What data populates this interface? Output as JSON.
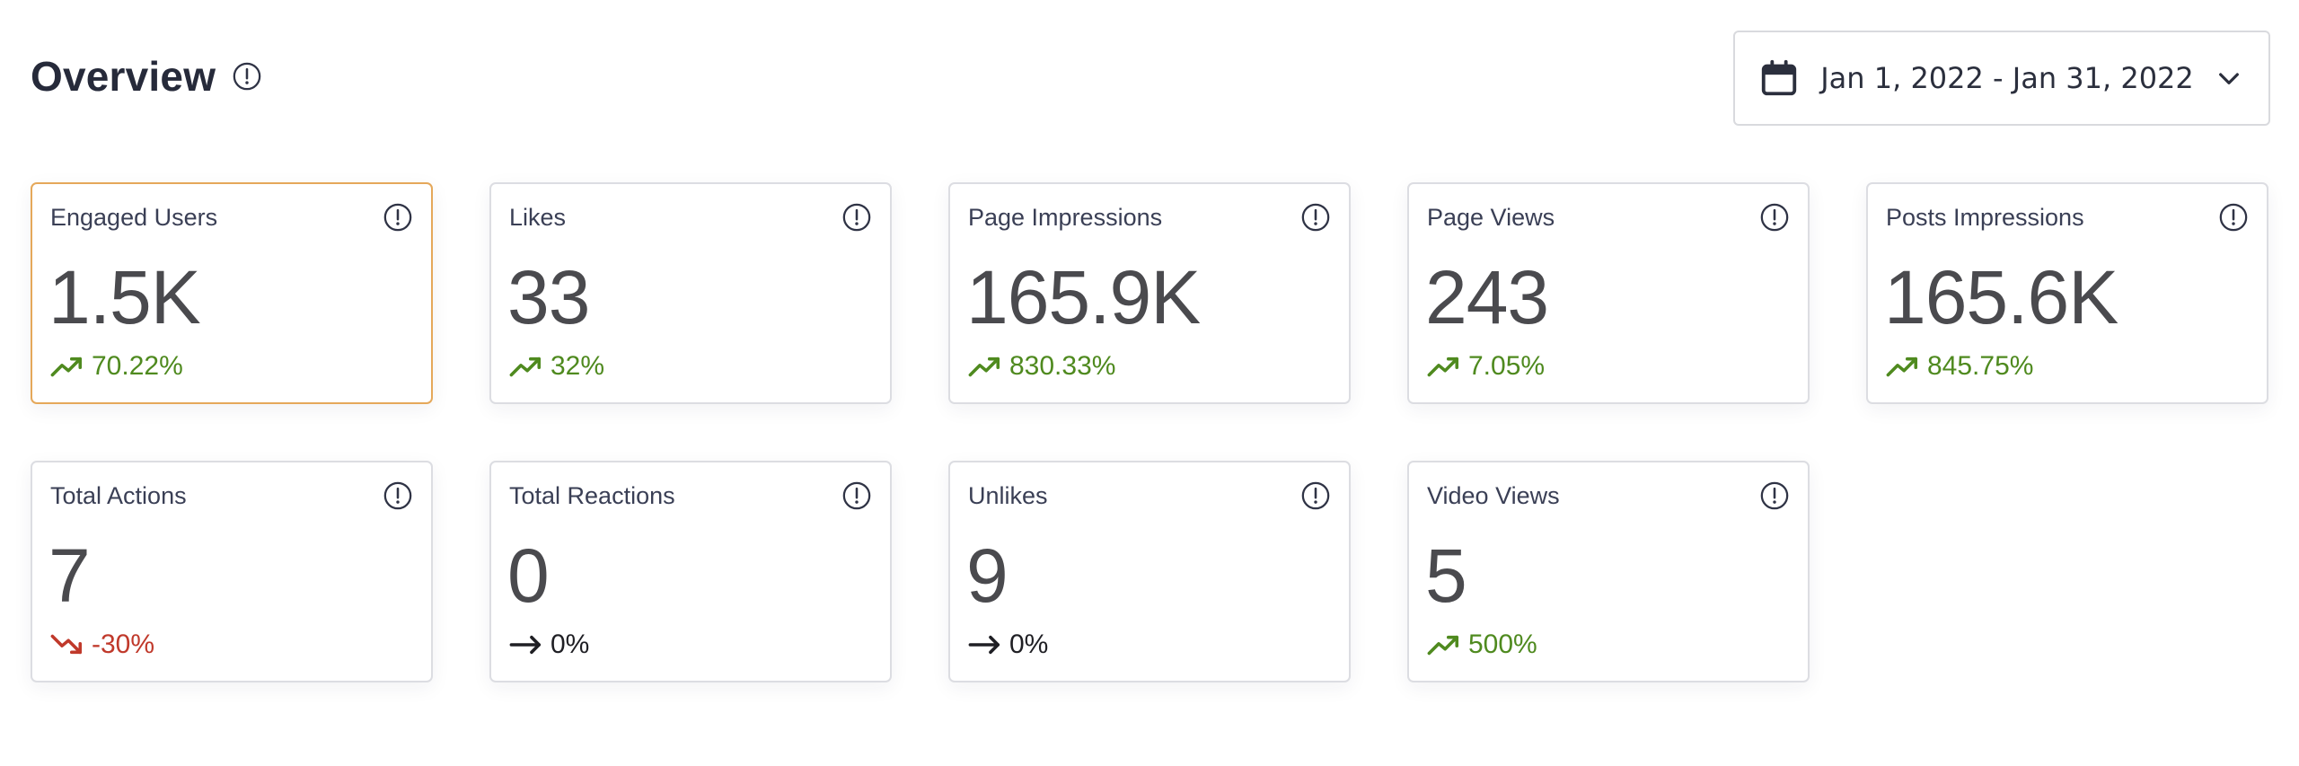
{
  "header": {
    "title": "Overview",
    "date_range": "Jan 1, 2022 - Jan 31, 2022"
  },
  "colors": {
    "up": "#4f8a1f",
    "down": "#c0392b",
    "flat": "#1f1f24",
    "selected_border": "#e5a85a"
  },
  "cards": [
    {
      "label": "Engaged Users",
      "value": "1.5K",
      "change": "70.22%",
      "trend": "up",
      "selected": true
    },
    {
      "label": "Likes",
      "value": "33",
      "change": "32%",
      "trend": "up",
      "selected": false
    },
    {
      "label": "Page Impressions",
      "value": "165.9K",
      "change": "830.33%",
      "trend": "up",
      "selected": false
    },
    {
      "label": "Page Views",
      "value": "243",
      "change": "7.05%",
      "trend": "up",
      "selected": false
    },
    {
      "label": "Posts Impressions",
      "value": "165.6K",
      "change": "845.75%",
      "trend": "up",
      "selected": false
    },
    {
      "label": "Total Actions",
      "value": "7",
      "change": "-30%",
      "trend": "down",
      "selected": false
    },
    {
      "label": "Total Reactions",
      "value": "0",
      "change": "0%",
      "trend": "flat",
      "selected": false
    },
    {
      "label": "Unlikes",
      "value": "9",
      "change": "0%",
      "trend": "flat",
      "selected": false
    },
    {
      "label": "Video Views",
      "value": "5",
      "change": "500%",
      "trend": "up",
      "selected": false
    }
  ]
}
